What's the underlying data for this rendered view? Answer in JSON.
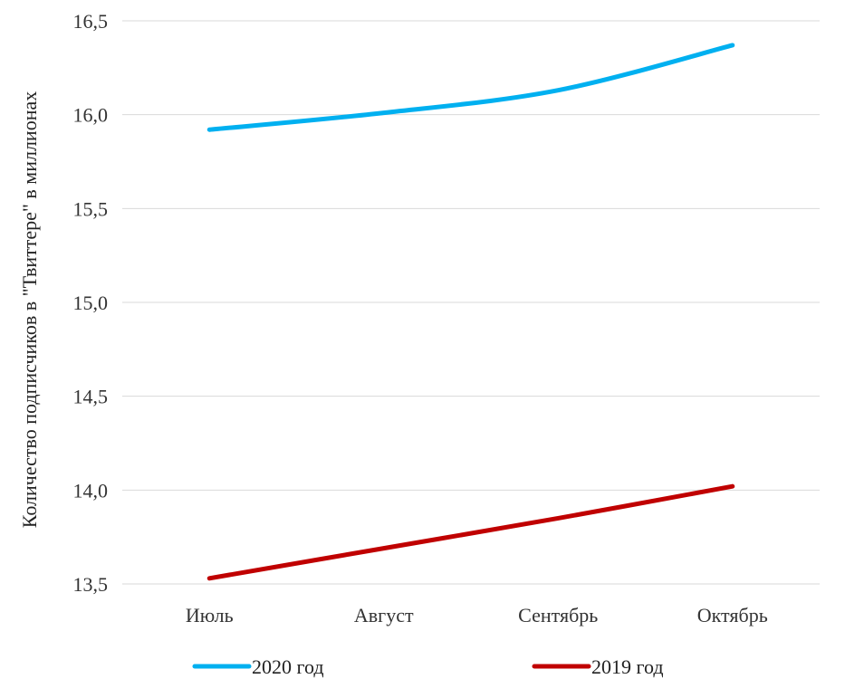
{
  "chart_data": {
    "type": "line",
    "title": "",
    "xlabel": "",
    "ylabel": "Количество подписчиков в \"Твиттере\" в миллионах",
    "categories": [
      "Июль",
      "Август",
      "Сентябрь",
      "Октябрь"
    ],
    "ylim": [
      13.5,
      16.5
    ],
    "yticks": [
      13.5,
      14.0,
      14.5,
      15.0,
      15.5,
      16.0,
      16.5
    ],
    "ytick_labels": [
      "13,5",
      "14,0",
      "14,5",
      "15,0",
      "15,5",
      "16,0",
      "16,5"
    ],
    "grid": true,
    "legend_position": "bottom",
    "series": [
      {
        "name": "2020 год",
        "color": "#00b0f0",
        "values": [
          15.92,
          16.01,
          16.13,
          16.37
        ]
      },
      {
        "name": "2019 год",
        "color": "#c00000",
        "values": [
          13.53,
          13.69,
          13.85,
          14.02
        ]
      }
    ]
  }
}
